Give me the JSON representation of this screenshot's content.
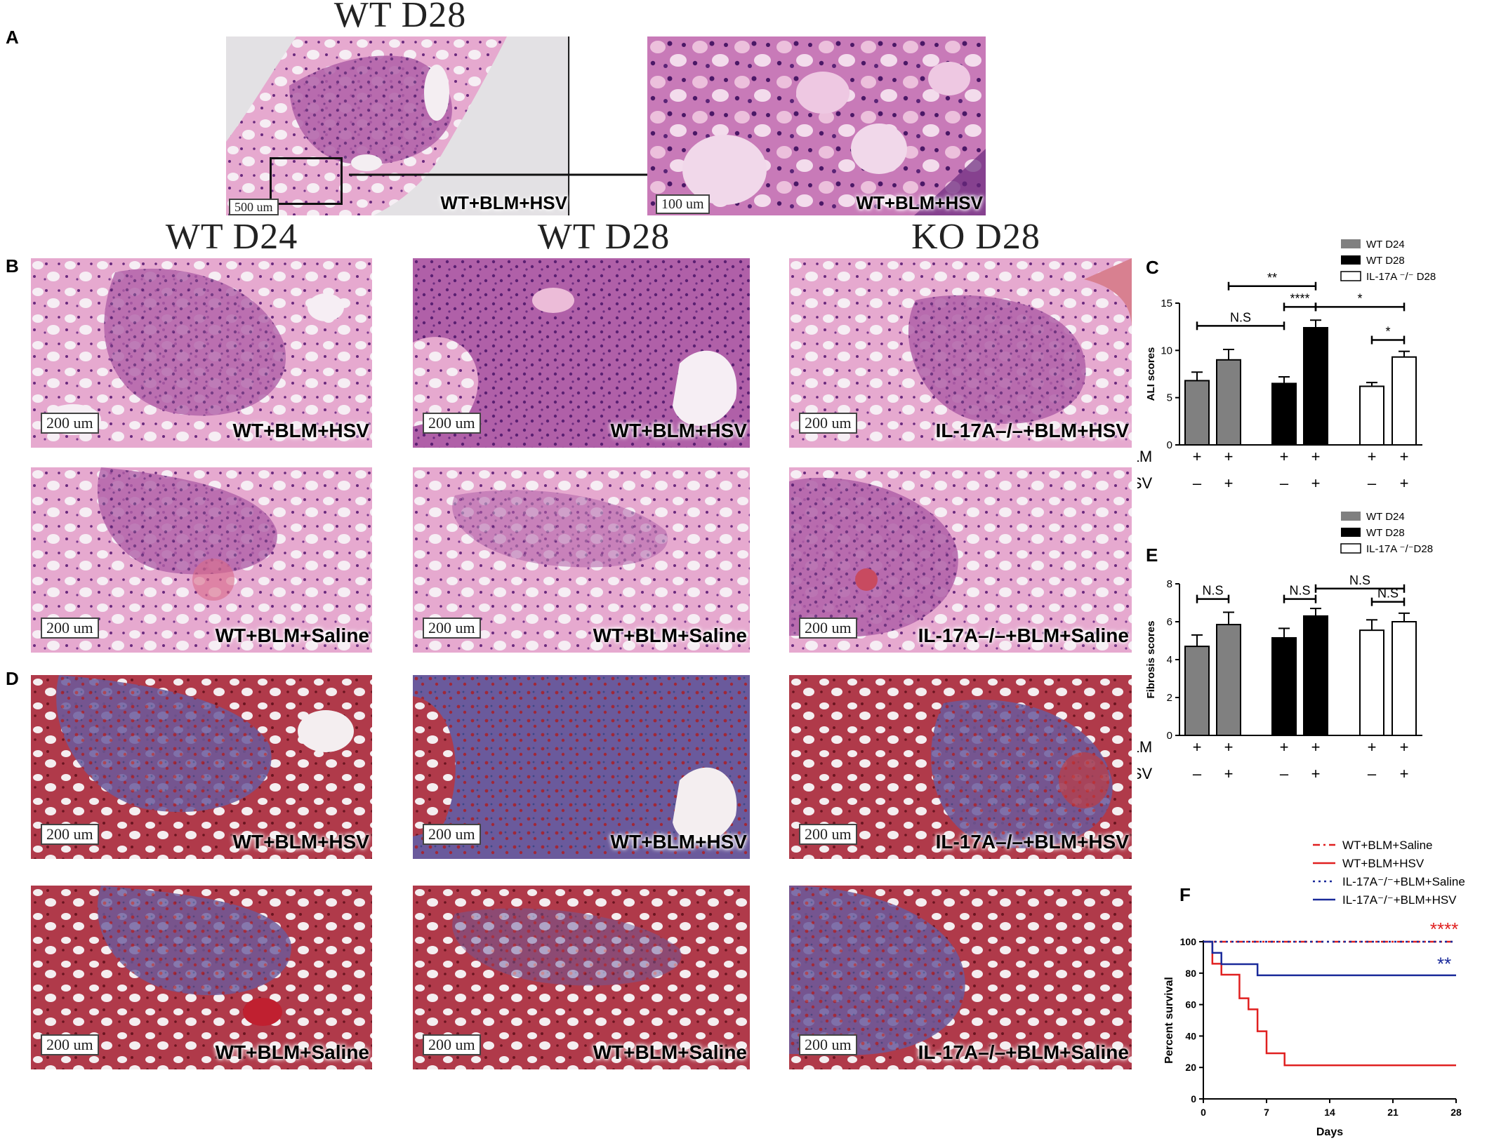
{
  "panel_letters": {
    "A": "A",
    "B": "B",
    "C": "C",
    "D": "D",
    "E": "E",
    "F": "F"
  },
  "panel_a": {
    "heading": "WT D28",
    "left_scale": "500 um",
    "left_label": "WT+BLM+HSV",
    "right_scale": "100 um",
    "right_label": "WT+BLM+HSV"
  },
  "column_headings": [
    "WT D24",
    "WT D28",
    "KO D28"
  ],
  "panel_b": [
    {
      "scale": "200 um",
      "label": "WT+BLM+HSV"
    },
    {
      "scale": "200 um",
      "label": "WT+BLM+HSV"
    },
    {
      "scale": "200 um",
      "label": "IL-17A–/–+BLM+HSV"
    },
    {
      "scale": "200 um",
      "label": "WT+BLM+Saline"
    },
    {
      "scale": "200 um",
      "label": "WT+BLM+Saline"
    },
    {
      "scale": "200 um",
      "label": "IL-17A–/–+BLM+Saline"
    }
  ],
  "panel_d": [
    {
      "scale": "200 um",
      "label": "WT+BLM+HSV"
    },
    {
      "scale": "200 um",
      "label": "WT+BLM+HSV"
    },
    {
      "scale": "200 um",
      "label": "IL-17A–/–+BLM+HSV"
    },
    {
      "scale": "200 um",
      "label": "WT+BLM+Saline"
    },
    {
      "scale": "200 um",
      "label": "WT+BLM+Saline"
    },
    {
      "scale": "200 um",
      "label": "IL-17A–/–+BLM+Saline"
    }
  ],
  "colors": {
    "he_pink": "#e8a8d0",
    "he_purple": "#8a3e8e",
    "tri_red": "#b02828",
    "tri_blue": "#5866a8",
    "gray_bar": "#808080",
    "red_line": "#e02020",
    "blue_line": "#1a2a9a"
  },
  "chart_data": [
    {
      "type": "bar",
      "panel": "C",
      "ylabel": "ALI scores",
      "ylim": [
        0,
        15
      ],
      "yticks": [
        0,
        5,
        10,
        15
      ],
      "legend": [
        "WT D24",
        "WT D28",
        "IL-17A ⁻/⁻ D28"
      ],
      "series": [
        {
          "name": "WT D24",
          "values": [
            6.8,
            9.0
          ],
          "errors": [
            0.9,
            1.1
          ],
          "fill": "#808080"
        },
        {
          "name": "WT D28",
          "values": [
            6.5,
            12.4
          ],
          "errors": [
            0.7,
            0.8
          ],
          "fill": "#000000"
        },
        {
          "name": "IL-17A ⁻/⁻ D28",
          "values": [
            6.2,
            9.3
          ],
          "errors": [
            0.4,
            0.6
          ],
          "fill": "#ffffff"
        }
      ],
      "rows": [
        {
          "label": "BLM",
          "marks": [
            "+",
            "+",
            "+",
            "+",
            "+",
            "+"
          ]
        },
        {
          "label": "HSV",
          "marks": [
            "–",
            "+",
            "–",
            "+",
            "–",
            "+"
          ]
        }
      ],
      "significance": [
        {
          "from": 1,
          "to": 3,
          "level": 12.6,
          "text": "N.S"
        },
        {
          "from": 2,
          "to": 4,
          "level": 16.8,
          "text": "**"
        },
        {
          "from": 3,
          "to": 4,
          "level": 14.6,
          "text": "****"
        },
        {
          "from": 4,
          "to": 6,
          "level": 14.6,
          "text": "*"
        },
        {
          "from": 5,
          "to": 6,
          "level": 11.1,
          "text": "*"
        }
      ]
    },
    {
      "type": "bar",
      "panel": "E",
      "ylabel": "Fibrosis scores",
      "ylim": [
        0,
        8
      ],
      "yticks": [
        0,
        2,
        4,
        6,
        8
      ],
      "legend": [
        "WT D24",
        "WT D28",
        "IL-17A ⁻/⁻D28"
      ],
      "series": [
        {
          "name": "WT D24",
          "values": [
            4.7,
            5.85
          ],
          "errors": [
            0.6,
            0.65
          ],
          "fill": "#808080"
        },
        {
          "name": "WT D28",
          "values": [
            5.15,
            6.3
          ],
          "errors": [
            0.5,
            0.4
          ],
          "fill": "#000000"
        },
        {
          "name": "IL-17A ⁻/⁻D28",
          "values": [
            5.55,
            6.0
          ],
          "errors": [
            0.55,
            0.45
          ],
          "fill": "#ffffff"
        }
      ],
      "rows": [
        {
          "label": "BLM",
          "marks": [
            "+",
            "+",
            "+",
            "+",
            "+",
            "+"
          ]
        },
        {
          "label": "HSV",
          "marks": [
            "–",
            "+",
            "–",
            "+",
            "–",
            "+"
          ]
        }
      ],
      "significance": [
        {
          "from": 1,
          "to": 2,
          "level": 7.2,
          "text": "N.S"
        },
        {
          "from": 3,
          "to": 4,
          "level": 7.2,
          "text": "N.S"
        },
        {
          "from": 4,
          "to": 6,
          "level": 7.75,
          "text": "N.S"
        },
        {
          "from": 5,
          "to": 6,
          "level": 7.05,
          "text": "N.S"
        }
      ]
    },
    {
      "type": "line",
      "panel": "F",
      "xlabel": "Days",
      "ylabel": "Percent survival",
      "xlim": [
        0,
        28
      ],
      "ylim": [
        0,
        100
      ],
      "xticks": [
        0,
        7,
        14,
        21,
        28
      ],
      "yticks": [
        0,
        20,
        40,
        60,
        80,
        100
      ],
      "series": [
        {
          "name": "WT+BLM+Saline",
          "color": "#e02020",
          "dash": "dashdot",
          "points": [
            [
              0,
              100
            ],
            [
              28,
              100
            ]
          ]
        },
        {
          "name": "WT+BLM+HSV",
          "color": "#e02020",
          "dash": "solid",
          "points": [
            [
              0,
              100
            ],
            [
              1,
              100
            ],
            [
              1,
              86
            ],
            [
              2,
              86
            ],
            [
              2,
              79
            ],
            [
              4,
              79
            ],
            [
              4,
              64
            ],
            [
              5,
              64
            ],
            [
              5,
              57
            ],
            [
              6,
              57
            ],
            [
              6,
              43
            ],
            [
              7,
              43
            ],
            [
              7,
              29
            ],
            [
              9,
              29
            ],
            [
              9,
              21.4
            ],
            [
              28,
              21.4
            ]
          ]
        },
        {
          "name": "IL-17A⁻/⁻+BLM+Saline",
          "color": "#1a2a9a",
          "dash": "dotted",
          "points": [
            [
              0,
              100
            ],
            [
              28,
              100
            ]
          ]
        },
        {
          "name": "IL-17A⁻/⁻+BLM+HSV",
          "color": "#1a2a9a",
          "dash": "solid",
          "points": [
            [
              0,
              100
            ],
            [
              1,
              100
            ],
            [
              1,
              92.9
            ],
            [
              2,
              92.9
            ],
            [
              2,
              85.7
            ],
            [
              6,
              85.7
            ],
            [
              6,
              78.6
            ],
            [
              28,
              78.6
            ]
          ]
        }
      ],
      "annotations": [
        {
          "text": "****",
          "color": "#e02020",
          "x": 26.6,
          "y": 104
        },
        {
          "text": "**",
          "color": "#1a2a9a",
          "x": 26.6,
          "y": 82
        }
      ]
    }
  ]
}
